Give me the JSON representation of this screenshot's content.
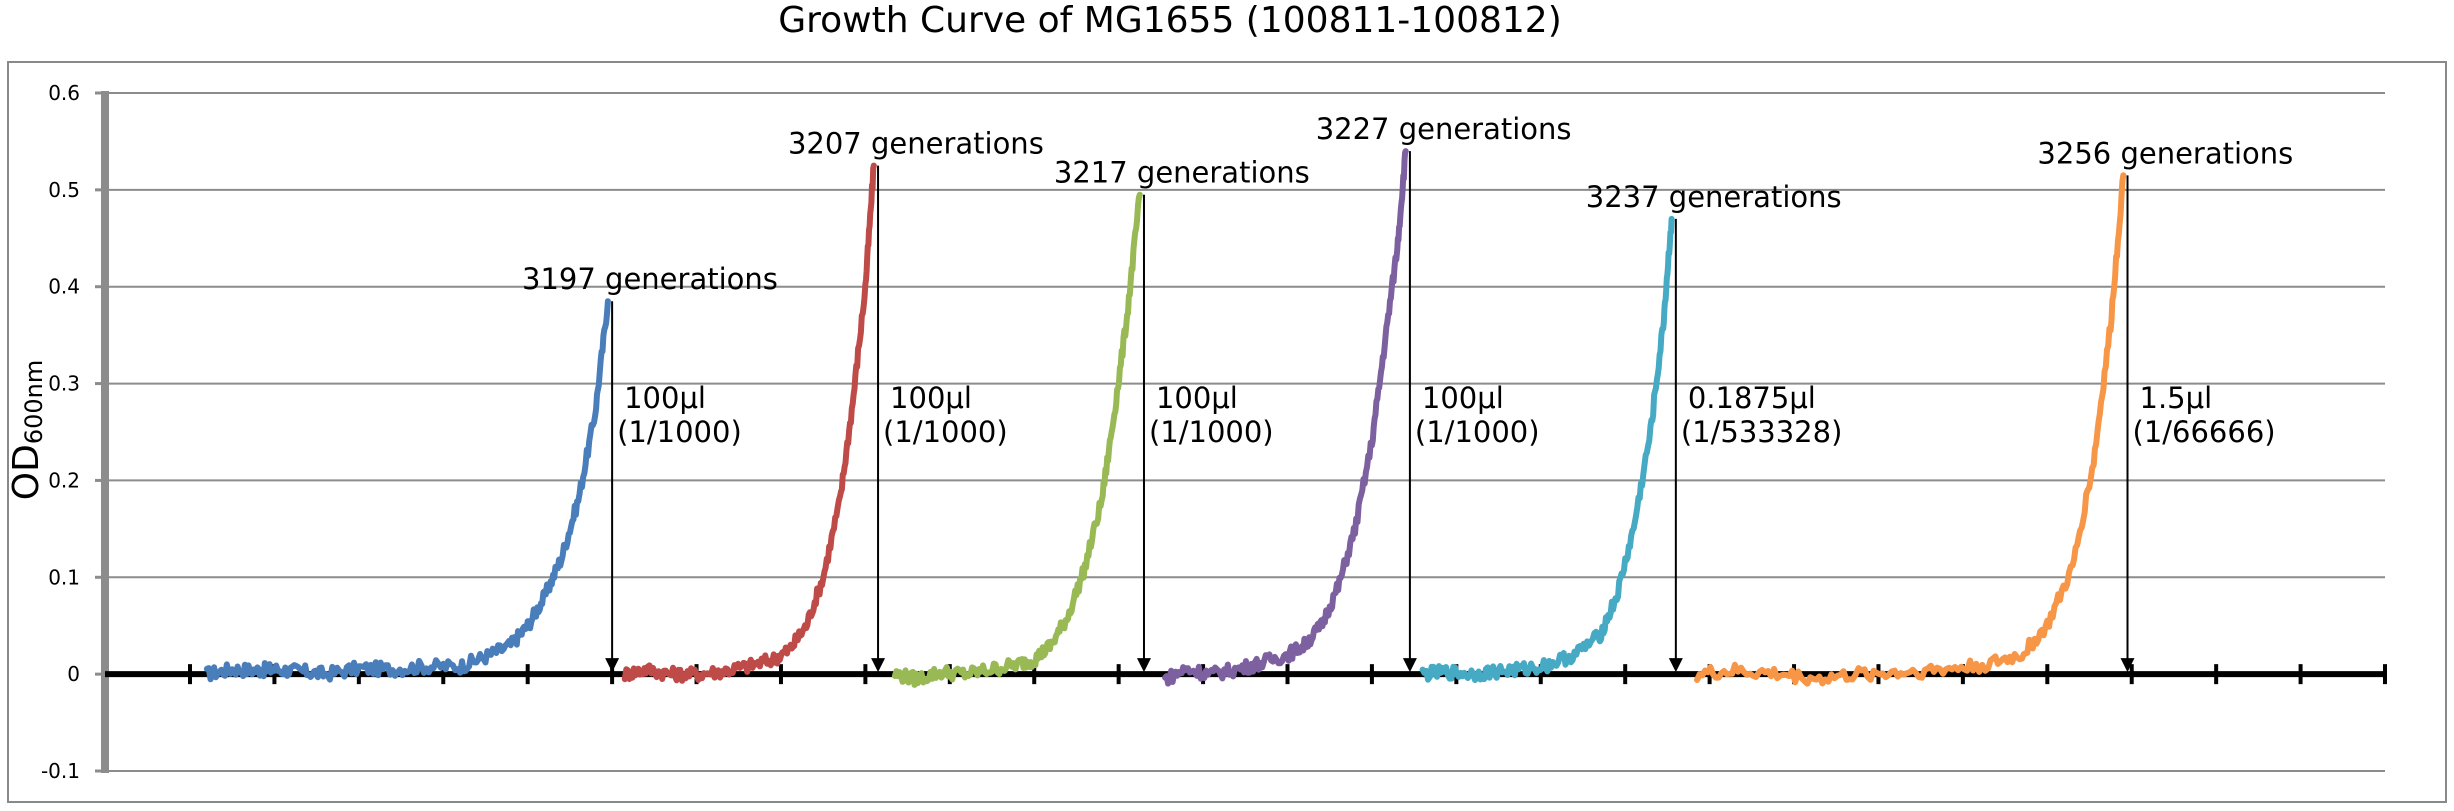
{
  "chart_data": {
    "type": "line",
    "title": "Growth Curve of MG1655 (100811-100812)",
    "ylabel_main": "OD",
    "ylabel_sub": "600nm",
    "xlabel": "",
    "ylim": [
      -0.1,
      0.6
    ],
    "yticks": [
      0.6,
      0.5,
      0.4,
      0.3,
      0.2,
      0.1,
      0,
      -0.1
    ],
    "ytick_labels": [
      "0.6",
      "0.5",
      "0.4",
      "0.3",
      "0.2",
      "0.1",
      "0",
      "-0.1"
    ],
    "grid": true,
    "legend": "none",
    "x_major_ticks": 27,
    "series": [
      {
        "color": "#4a7ebb",
        "x": [
          0.2,
          0.5,
          0.8,
          1.0,
          1.3,
          1.6,
          2.0,
          2.4,
          2.8,
          3.2,
          3.5,
          3.8,
          4.0,
          4.2,
          4.4,
          4.6,
          4.8,
          4.95
        ],
        "y": [
          0.0,
          0.005,
          0.004,
          0.005,
          0.003,
          0.0,
          0.006,
          0.005,
          0.008,
          0.008,
          0.018,
          0.03,
          0.05,
          0.08,
          0.12,
          0.18,
          0.27,
          0.385
        ]
      },
      {
        "color": "#be4b48",
        "x": [
          5.15,
          5.4,
          5.7,
          6.0,
          6.3,
          6.6,
          6.9,
          7.1,
          7.3,
          7.5,
          7.7,
          7.85,
          8.0,
          8.1
        ],
        "y": [
          0.0,
          0.005,
          0.0,
          0.0,
          0.003,
          0.008,
          0.015,
          0.025,
          0.05,
          0.1,
          0.18,
          0.28,
          0.4,
          0.525
        ]
      },
      {
        "color": "#98b954",
        "x": [
          8.35,
          8.6,
          8.9,
          9.2,
          9.5,
          9.8,
          10.0,
          10.2,
          10.4,
          10.6,
          10.8,
          10.95,
          11.1,
          11.25
        ],
        "y": [
          0.0,
          -0.005,
          0.002,
          0.0,
          0.005,
          0.01,
          0.015,
          0.03,
          0.06,
          0.11,
          0.18,
          0.27,
          0.37,
          0.495
        ]
      },
      {
        "color": "#7d60a0",
        "x": [
          11.55,
          11.8,
          12.1,
          12.4,
          12.7,
          13.0,
          13.2,
          13.4,
          13.6,
          13.8,
          14.0,
          14.15,
          14.3,
          14.4
        ],
        "y": [
          -0.005,
          0.005,
          0.0,
          0.005,
          0.012,
          0.02,
          0.03,
          0.05,
          0.09,
          0.15,
          0.24,
          0.34,
          0.44,
          0.54
        ]
      },
      {
        "color": "#46aac5",
        "x": [
          14.6,
          14.9,
          15.2,
          15.5,
          15.8,
          16.1,
          16.4,
          16.7,
          16.9,
          17.1,
          17.3,
          17.45,
          17.55
        ],
        "y": [
          0.0,
          0.002,
          0.0,
          0.003,
          0.005,
          0.01,
          0.02,
          0.04,
          0.08,
          0.15,
          0.25,
          0.36,
          0.47
        ]
      },
      {
        "color": "#f79646",
        "x": [
          17.85,
          18.3,
          18.8,
          19.3,
          19.8,
          20.3,
          20.8,
          21.3,
          21.7,
          22.0,
          22.3,
          22.55,
          22.75,
          22.9
        ],
        "y": [
          0.0,
          0.003,
          0.0,
          -0.005,
          0.0,
          0.002,
          0.005,
          0.01,
          0.02,
          0.05,
          0.11,
          0.22,
          0.36,
          0.515
        ]
      }
    ],
    "annotations": [
      {
        "text": "3197 generations",
        "x": 4.95,
        "y": 0.385,
        "anchor": "end"
      },
      {
        "text": "3207 generations",
        "x": 8.1,
        "y": 0.525,
        "anchor": "end"
      },
      {
        "text": "3217 generations",
        "x": 11.25,
        "y": 0.495,
        "anchor": "end"
      },
      {
        "text": "3227 generations",
        "x": 14.4,
        "y": 0.54,
        "anchor": "start"
      },
      {
        "text": "3237 generations",
        "x": 17.55,
        "y": 0.47,
        "anchor": "end"
      },
      {
        "text": "3256 generations",
        "x": 22.9,
        "y": 0.515,
        "anchor": "end"
      }
    ],
    "transfers": [
      {
        "x": 5.0,
        "from_y": 0.385,
        "label1": "100μl",
        "label2": "(1/1000)"
      },
      {
        "x": 8.15,
        "from_y": 0.525,
        "label1": "100μl",
        "label2": "(1/1000)"
      },
      {
        "x": 11.3,
        "from_y": 0.495,
        "label1": "100μl",
        "label2": "(1/1000)"
      },
      {
        "x": 14.45,
        "from_y": 0.54,
        "label1": "100μl",
        "label2": "(1/1000)"
      },
      {
        "x": 17.6,
        "from_y": 0.47,
        "label1": "0.1875μl",
        "label2": "(1/533328)"
      },
      {
        "x": 22.95,
        "from_y": 0.515,
        "label1": "1.5μl",
        "label2": "(1/66666)"
      }
    ]
  }
}
